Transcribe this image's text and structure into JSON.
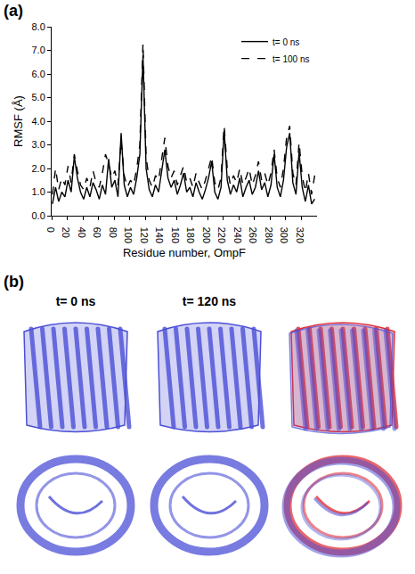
{
  "panel_labels": [
    "(a)",
    "(b)"
  ],
  "chart_data": {
    "type": "line",
    "xlabel": "Residue number, OmpF",
    "ylabel": "RMSF (Å)",
    "x": [
      1,
      5,
      9,
      13,
      17,
      21,
      25,
      29,
      33,
      37,
      41,
      45,
      49,
      53,
      57,
      61,
      65,
      69,
      73,
      77,
      81,
      85,
      89,
      93,
      97,
      101,
      105,
      109,
      113,
      117,
      121,
      125,
      129,
      133,
      137,
      141,
      145,
      149,
      153,
      157,
      161,
      165,
      169,
      173,
      177,
      181,
      185,
      189,
      193,
      197,
      201,
      205,
      209,
      213,
      217,
      221,
      225,
      229,
      233,
      237,
      241,
      245,
      249,
      253,
      257,
      261,
      265,
      269,
      273,
      277,
      281,
      285,
      289,
      293,
      297,
      301,
      305,
      309,
      313,
      317,
      321,
      325,
      329,
      333,
      337
    ],
    "series": [
      {
        "name": "t= 0 ns",
        "color": "#000000",
        "line_style": "solid",
        "values": [
          0.5,
          1.2,
          0.6,
          1.0,
          0.8,
          1.5,
          1.0,
          2.5,
          1.6,
          1.0,
          0.7,
          1.2,
          0.8,
          1.4,
          1.1,
          0.7,
          1.3,
          0.9,
          2.4,
          1.2,
          1.5,
          0.8,
          3.5,
          1.3,
          0.8,
          1.2,
          0.9,
          1.6,
          2.6,
          6.8,
          2.0,
          1.1,
          0.8,
          1.3,
          1.0,
          1.9,
          2.8,
          1.6,
          1.2,
          1.5,
          0.9,
          1.3,
          1.8,
          1.0,
          1.2,
          0.8,
          1.4,
          1.0,
          0.7,
          1.1,
          1.6,
          2.3,
          1.0,
          0.7,
          1.2,
          3.6,
          1.5,
          0.9,
          1.3,
          1.0,
          1.6,
          0.8,
          1.2,
          1.5,
          0.9,
          1.2,
          1.9,
          1.1,
          1.4,
          0.8,
          1.3,
          2.6,
          1.2,
          0.8,
          1.5,
          2.9,
          3.5,
          1.4,
          0.9,
          2.7,
          1.2,
          0.6,
          1.3,
          0.5,
          0.7
        ]
      },
      {
        "name": "t= 100 ns",
        "color": "#000000",
        "line_style": "dash",
        "values": [
          0.9,
          2.0,
          1.1,
          1.6,
          1.3,
          2.1,
          1.4,
          2.6,
          1.9,
          1.3,
          1.1,
          1.6,
          1.2,
          1.9,
          1.4,
          1.2,
          1.8,
          2.6,
          2.2,
          1.6,
          1.9,
          1.3,
          3.2,
          1.7,
          1.2,
          1.5,
          1.3,
          2.0,
          3.0,
          7.3,
          2.5,
          1.5,
          1.2,
          1.7,
          1.5,
          2.4,
          3.3,
          2.1,
          1.6,
          1.9,
          1.3,
          1.7,
          2.1,
          1.4,
          1.6,
          1.2,
          1.8,
          1.4,
          1.1,
          1.5,
          2.0,
          2.5,
          1.4,
          1.1,
          1.6,
          3.8,
          2.0,
          1.3,
          1.7,
          1.4,
          2.0,
          1.3,
          1.6,
          2.0,
          1.3,
          1.7,
          2.3,
          1.5,
          1.8,
          1.3,
          1.8,
          2.8,
          1.6,
          1.2,
          2.0,
          3.3,
          3.8,
          1.8,
          1.3,
          3.1,
          1.7,
          1.0,
          1.8,
          0.9,
          1.7
        ]
      }
    ],
    "xlim": [
      0,
      340
    ],
    "xticks": [
      0,
      20,
      40,
      60,
      80,
      100,
      120,
      140,
      160,
      180,
      200,
      220,
      240,
      260,
      280,
      300,
      320
    ],
    "ylim": [
      0,
      8
    ],
    "yticks": [
      {
        "value": 0,
        "label": "0.0"
      },
      {
        "value": 1,
        "label": "1.0"
      },
      {
        "value": 2,
        "label": "2.0"
      },
      {
        "value": 3,
        "label": "3.0"
      },
      {
        "value": 4,
        "label": "4.0"
      },
      {
        "value": 5,
        "label": "5.0"
      },
      {
        "value": 6,
        "label": "6.0"
      },
      {
        "value": 7,
        "label": "7.0"
      },
      {
        "value": 8,
        "label": "8.0"
      }
    ],
    "grid": false,
    "legend": "top right"
  },
  "structure_labels": [
    "t= 0 ns",
    "t= 120 ns"
  ]
}
